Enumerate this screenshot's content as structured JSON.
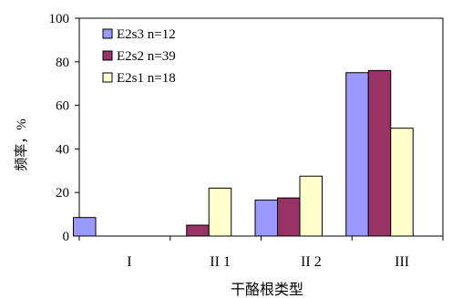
{
  "chart_data": {
    "type": "bar",
    "title": "",
    "xlabel": "干酪根类型",
    "ylabel": "频率，%",
    "categories": [
      "I",
      "II 1",
      "II 2",
      "III"
    ],
    "ylim": [
      0,
      100
    ],
    "yticks": [
      "0",
      "20",
      "40",
      "60",
      "80",
      "100"
    ],
    "legend_position": "top-left",
    "grid": false,
    "series": [
      {
        "name": "E2s3 n=12",
        "color": "#9999ff",
        "values": [
          8.5,
          0,
          16.5,
          75
        ]
      },
      {
        "name": "E2s2 n=39",
        "color": "#993366",
        "values": [
          0,
          5,
          17.5,
          76
        ]
      },
      {
        "name": "E2s1 n=18",
        "color": "#ffffcc",
        "values": [
          0,
          22,
          27.5,
          49.5
        ]
      }
    ]
  }
}
